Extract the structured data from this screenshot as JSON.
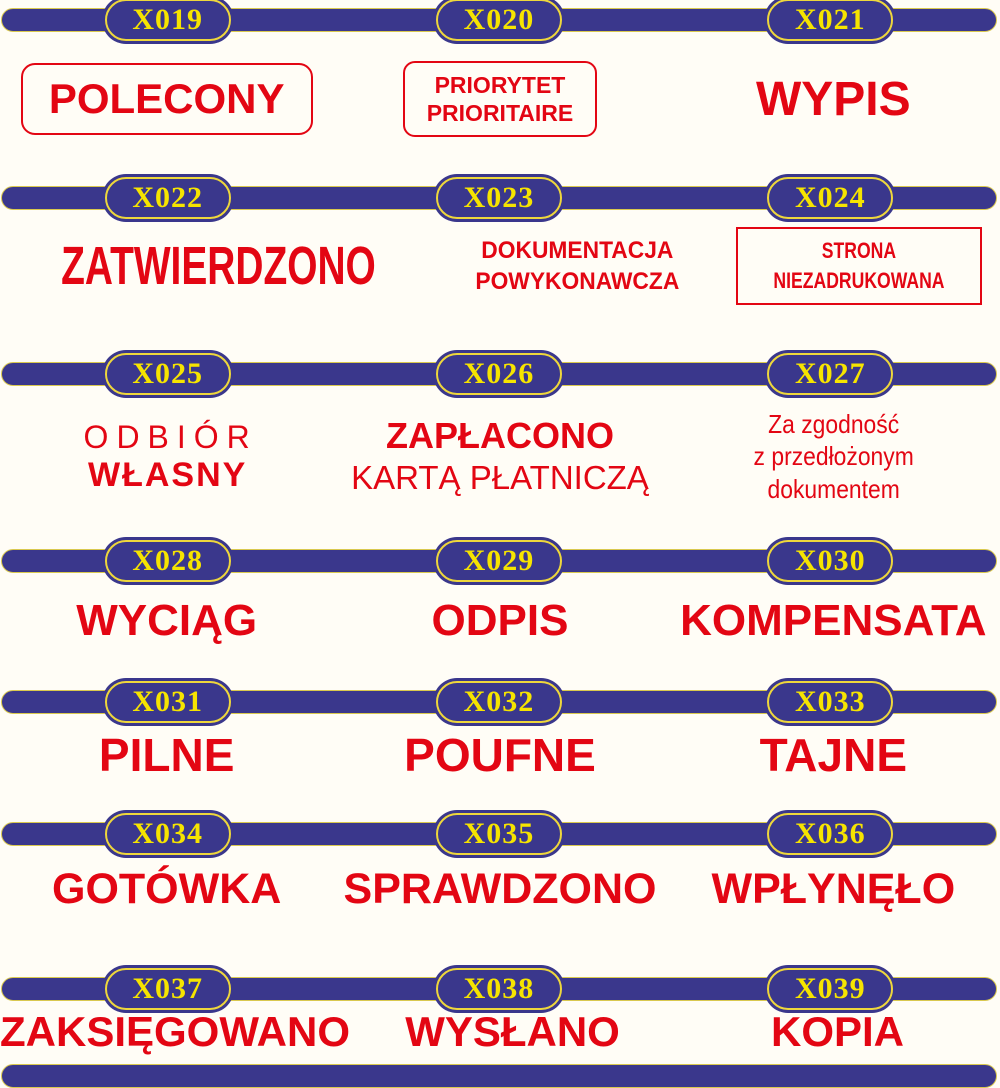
{
  "sheet": {
    "colors": {
      "bar_navy": "#3a378c",
      "code_yellow": "#f6e400",
      "stamp_red": "#e30613",
      "background": "#fffdf6"
    },
    "rows": [
      {
        "codes": [
          "X019",
          "X020",
          "X021"
        ],
        "stamps": [
          {
            "lines": [
              "POLECONY"
            ]
          },
          {
            "lines": [
              "PRIORYTET",
              "PRIORITAIRE"
            ]
          },
          {
            "lines": [
              "WYPIS"
            ]
          }
        ]
      },
      {
        "codes": [
          "X022",
          "X023",
          "X024"
        ],
        "stamps": [
          {
            "lines": [
              "ZATWIERDZONO"
            ]
          },
          {
            "lines": [
              "DOKUMENTACJA",
              "POWYKONAWCZA"
            ]
          },
          {
            "lines": [
              "STRONA",
              "NIEZADRUKOWANA"
            ]
          }
        ]
      },
      {
        "codes": [
          "X025",
          "X026",
          "X027"
        ],
        "stamps": [
          {
            "lines": [
              "ODBIÓR",
              "WŁASNY"
            ]
          },
          {
            "lines": [
              "ZAPŁACONO",
              "KARTĄ PŁATNICZĄ"
            ]
          },
          {
            "lines": [
              "Za zgodność",
              "z przedłożonym dokumentem"
            ]
          }
        ]
      },
      {
        "codes": [
          "X028",
          "X029",
          "X030"
        ],
        "stamps": [
          {
            "lines": [
              "WYCIĄG"
            ]
          },
          {
            "lines": [
              "ODPIS"
            ]
          },
          {
            "lines": [
              "KOMPENSATA"
            ]
          }
        ]
      },
      {
        "codes": [
          "X031",
          "X032",
          "X033"
        ],
        "stamps": [
          {
            "lines": [
              "PILNE"
            ]
          },
          {
            "lines": [
              "POUFNE"
            ]
          },
          {
            "lines": [
              "TAJNE"
            ]
          }
        ]
      },
      {
        "codes": [
          "X034",
          "X035",
          "X036"
        ],
        "stamps": [
          {
            "lines": [
              "GOTÓWKA"
            ]
          },
          {
            "lines": [
              "SPRAWDZONO"
            ]
          },
          {
            "lines": [
              "WPŁYNĘŁO"
            ]
          }
        ]
      },
      {
        "codes": [
          "X037",
          "X038",
          "X039"
        ],
        "stamps": [
          {
            "lines": [
              "ZAKSIĘGOWANO"
            ]
          },
          {
            "lines": [
              "WYSŁANO"
            ]
          },
          {
            "lines": [
              "KOPIA"
            ]
          }
        ]
      }
    ]
  }
}
